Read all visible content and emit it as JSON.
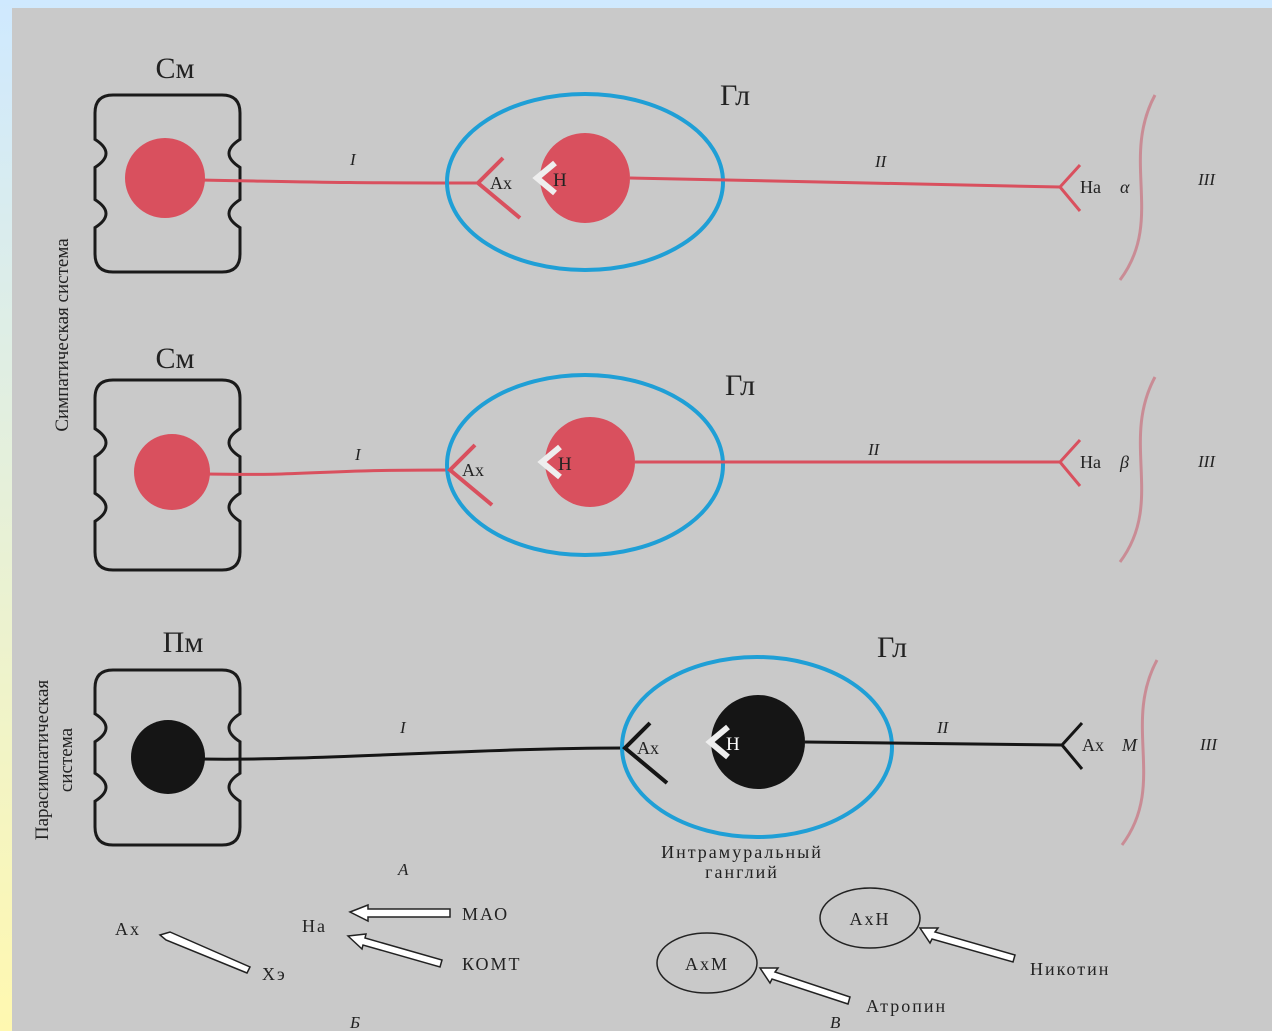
{
  "side_labels": {
    "sympathetic": "Симпатическая система",
    "parasympathetic": [
      "Парасимпатическая",
      "система"
    ]
  },
  "rows": [
    {
      "cell": "См",
      "ganglion": "Гл",
      "fiber_1": "I",
      "fiber_2": "II",
      "mediator": "Ах",
      "receptor": "Н",
      "terminal": "На",
      "terminal_receptor": "α",
      "effector": "III"
    },
    {
      "cell": "См",
      "ganglion": "Гл",
      "fiber_1": "I",
      "fiber_2": "II",
      "mediator": "Ах",
      "receptor": "Н",
      "terminal": "На",
      "terminal_receptor": "β",
      "effector": "III"
    },
    {
      "cell": "Пм",
      "ganglion": "Гл",
      "fiber_1": "I",
      "fiber_2": "II",
      "mediator": "Ах",
      "receptor": "Н",
      "terminal": "Ах",
      "terminal_receptor": "М",
      "effector": "III"
    }
  ],
  "intramural_ganglion": [
    "Интрамуральный",
    "ганглий"
  ],
  "panel_labels": [
    "А",
    "Б",
    "В"
  ],
  "panel_b": {
    "acetylcholine": "Ах",
    "cholinesterase": "Хэ",
    "noradrenaline": "На",
    "mao": "МАО",
    "comt": "КОМТ"
  },
  "panel_c": {
    "m_receptor": "АхМ",
    "n_receptor": "АхН",
    "atropine": "Атропин",
    "nicotine": "Никотин"
  }
}
